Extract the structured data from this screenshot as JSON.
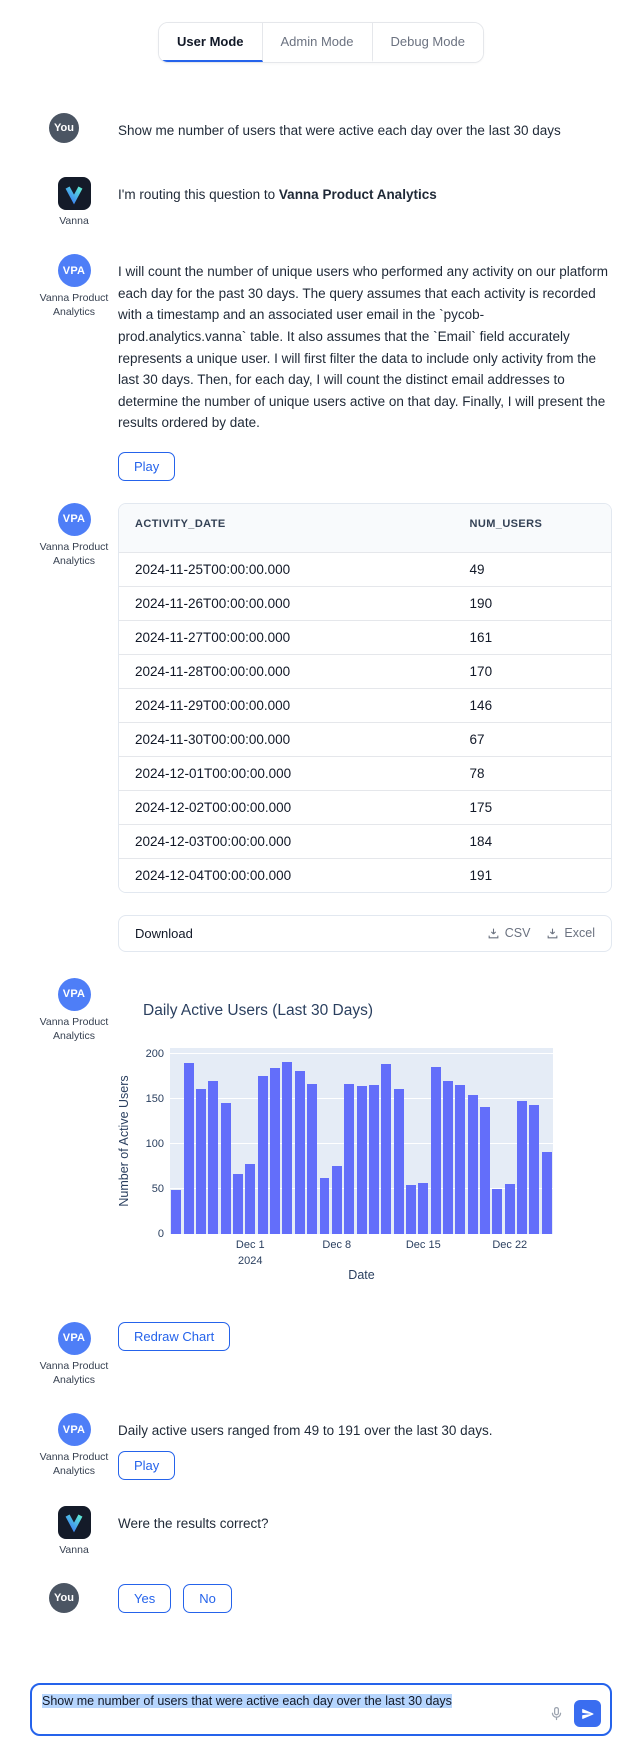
{
  "tabs": [
    {
      "label": "User Mode",
      "active": true
    },
    {
      "label": "Admin Mode",
      "active": false
    },
    {
      "label": "Debug Mode",
      "active": false
    }
  ],
  "chat": {
    "you_label": "You",
    "vanna_label": "Vanna",
    "vpa_initials": "VPA",
    "vpa_label": "Vanna Product Analytics",
    "user_message": "Show me number of users that were active each day over the last 30 days",
    "routing_prefix": "I'm routing this question to ",
    "routing_target": "Vanna Product Analytics",
    "explanation": "I will count the number of unique users who performed any activity on our platform each day for the past 30 days.  The query assumes that each activity is recorded with a timestamp and an associated user email in the `pycob-prod.analytics.vanna` table.  It also assumes that the `Email` field accurately represents a unique user.  I will first filter the data to include only activity from the last 30 days. Then, for each day, I will count the distinct email addresses to determine the number of unique users active on that day. Finally, I will present the results ordered by date.",
    "play_label": "Play",
    "redraw_label": "Redraw Chart",
    "summary": "Daily active users ranged from 49 to 191 over the last 30 days.",
    "followup": "Were the results correct?",
    "yes_label": "Yes",
    "no_label": "No"
  },
  "table": {
    "columns": [
      "ACTIVITY_DATE",
      "NUM_USERS"
    ],
    "rows": [
      [
        "2024-11-25T00:00:00.000",
        "49"
      ],
      [
        "2024-11-26T00:00:00.000",
        "190"
      ],
      [
        "2024-11-27T00:00:00.000",
        "161"
      ],
      [
        "2024-11-28T00:00:00.000",
        "170"
      ],
      [
        "2024-11-29T00:00:00.000",
        "146"
      ],
      [
        "2024-11-30T00:00:00.000",
        "67"
      ],
      [
        "2024-12-01T00:00:00.000",
        "78"
      ],
      [
        "2024-12-02T00:00:00.000",
        "175"
      ],
      [
        "2024-12-03T00:00:00.000",
        "184"
      ],
      [
        "2024-12-04T00:00:00.000",
        "191"
      ]
    ]
  },
  "download": {
    "label": "Download",
    "csv_label": "CSV",
    "excel_label": "Excel",
    "icon": "download-icon"
  },
  "chart_data": {
    "type": "bar",
    "title": "Daily Active Users (Last 30 Days)",
    "xlabel": "Date",
    "ylabel": "Number of Active Users",
    "ylim": [
      0,
      200
    ],
    "yticks": [
      0,
      50,
      100,
      150,
      200
    ],
    "x": [
      "2024-11-25",
      "2024-11-26",
      "2024-11-27",
      "2024-11-28",
      "2024-11-29",
      "2024-11-30",
      "2024-12-01",
      "2024-12-02",
      "2024-12-03",
      "2024-12-04",
      "2024-12-05",
      "2024-12-06",
      "2024-12-07",
      "2024-12-08",
      "2024-12-09",
      "2024-12-10",
      "2024-12-11",
      "2024-12-12",
      "2024-12-13",
      "2024-12-14",
      "2024-12-15",
      "2024-12-16",
      "2024-12-17",
      "2024-12-18",
      "2024-12-19",
      "2024-12-20",
      "2024-12-21",
      "2024-12-22",
      "2024-12-23",
      "2024-12-24",
      "2024-12-25"
    ],
    "values": [
      49,
      190,
      161,
      170,
      146,
      67,
      78,
      175,
      184,
      191,
      181,
      167,
      62,
      75,
      167,
      164,
      165,
      189,
      161,
      54,
      57,
      186,
      170,
      165,
      154,
      141,
      50,
      56,
      148,
      143,
      91
    ],
    "xticks": [
      {
        "label": "Dec 1",
        "sub": "2024",
        "index": 6
      },
      {
        "label": "Dec 8",
        "sub": "",
        "index": 13
      },
      {
        "label": "Dec 15",
        "sub": "",
        "index": 20
      },
      {
        "label": "Dec 22",
        "sub": "",
        "index": 27
      }
    ],
    "grid": true,
    "legend": false,
    "bar_color": "#636efa",
    "plot_bg": "#e5ecf6",
    "axis_text_color": "#2a3f5f"
  },
  "composer": {
    "value": "Show me number of users that were active each day over the last 30 days",
    "mic_icon": "microphone-icon",
    "send_icon": "paper-plane-icon"
  },
  "colors": {
    "accent_blue": "#2563eb",
    "you_avatar": "#4b5563",
    "vpa_avatar": "#4e7ef7",
    "selection_highlight": "#b6d5fd"
  }
}
